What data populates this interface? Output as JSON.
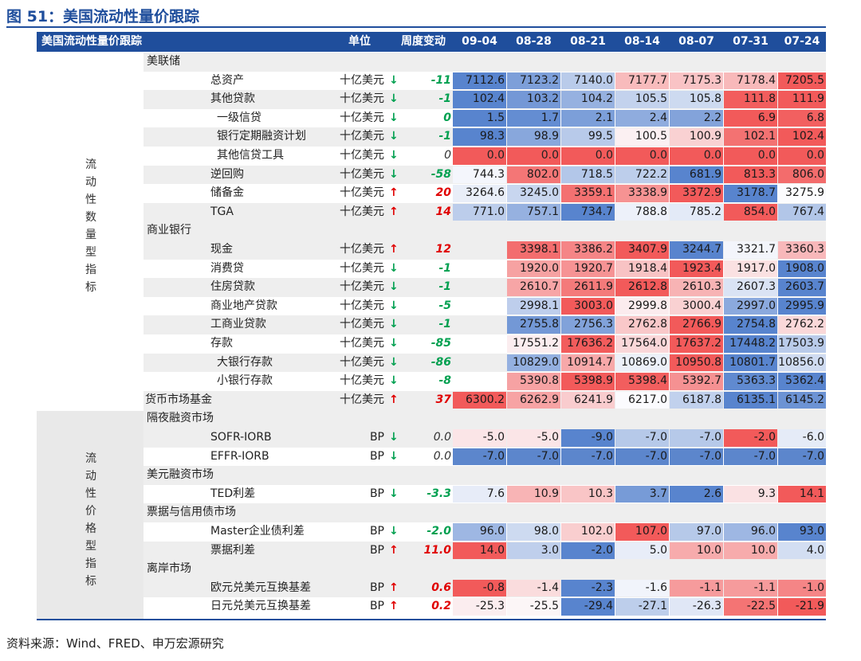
{
  "title": "图 51：美国流动性量价跟踪",
  "header": {
    "name": "美国流动性量价跟踪",
    "unit": "单位",
    "weekly_change": "周度变动",
    "dates": [
      "09-04",
      "08-28",
      "08-21",
      "08-14",
      "08-07",
      "07-31",
      "07-24"
    ]
  },
  "left_labels": {
    "quantity": [
      "流",
      "动",
      "性",
      "数",
      "量",
      "型",
      "指",
      "标"
    ],
    "price": [
      "流",
      "动",
      "性",
      "价",
      "格",
      "型",
      "指",
      "标"
    ]
  },
  "source": "资料来源：Wind、FRED、申万宏源研究",
  "colors": {
    "accent": "#1f4e9c",
    "up": "#e00000",
    "down": "#00a050"
  },
  "rows": [
    {
      "type": "section",
      "label": "美联储"
    },
    {
      "label": "总资产",
      "indent": 1,
      "unit": "十亿美元",
      "dir": "down",
      "change": "-11",
      "values": [
        "7112.6",
        "7123.2",
        "7140.0",
        "7177.7",
        "7175.3",
        "7178.4",
        "7205.5"
      ]
    },
    {
      "label": "其他贷款",
      "indent": 1,
      "unit": "十亿美元",
      "dir": "down",
      "change": "-1",
      "values": [
        "102.4",
        "103.2",
        "104.2",
        "105.5",
        "105.8",
        "111.8",
        "111.9"
      ]
    },
    {
      "label": "一级信贷",
      "indent": 2,
      "unit": "十亿美元",
      "dir": "down",
      "change": "0",
      "values": [
        "1.5",
        "1.7",
        "2.1",
        "2.4",
        "2.2",
        "6.9",
        "6.8"
      ]
    },
    {
      "label": "银行定期融资计划",
      "indent": 2,
      "unit": "十亿美元",
      "dir": "down",
      "change": "-1",
      "values": [
        "98.3",
        "98.9",
        "99.5",
        "100.5",
        "100.9",
        "102.1",
        "102.4"
      ]
    },
    {
      "label": "其他信贷工具",
      "indent": 2,
      "unit": "十亿美元",
      "dir": "down",
      "change": "0",
      "neutral": true,
      "values": [
        "0.0",
        "0.0",
        "0.0",
        "0.0",
        "0.0",
        "0.0",
        "0.0"
      ]
    },
    {
      "label": "逆回购",
      "indent": 1,
      "unit": "十亿美元",
      "dir": "down",
      "change": "-58",
      "values": [
        "744.3",
        "802.0",
        "718.5",
        "722.2",
        "681.9",
        "813.3",
        "806.0"
      ]
    },
    {
      "label": "储备金",
      "indent": 1,
      "unit": "十亿美元",
      "dir": "up",
      "change": "20",
      "values": [
        "3264.6",
        "3245.0",
        "3359.1",
        "3338.9",
        "3372.9",
        "3178.7",
        "3275.9"
      ]
    },
    {
      "label": "TGA",
      "indent": 1,
      "unit": "十亿美元",
      "dir": "up",
      "change": "14",
      "values": [
        "771.0",
        "757.1",
        "734.7",
        "788.8",
        "785.2",
        "854.0",
        "767.4"
      ]
    },
    {
      "type": "section",
      "label": "商业银行"
    },
    {
      "label": "现金",
      "indent": 1,
      "unit": "十亿美元",
      "dir": "up",
      "change": "12",
      "values": [
        "",
        "3398.1",
        "3386.2",
        "3407.9",
        "3244.7",
        "3321.7",
        "3360.3"
      ]
    },
    {
      "label": "消费贷",
      "indent": 1,
      "unit": "十亿美元",
      "dir": "down",
      "change": "-1",
      "values": [
        "",
        "1920.0",
        "1920.7",
        "1918.4",
        "1923.4",
        "1917.0",
        "1908.0"
      ]
    },
    {
      "label": "住房贷款",
      "indent": 1,
      "unit": "十亿美元",
      "dir": "down",
      "change": "-1",
      "values": [
        "",
        "2610.7",
        "2611.9",
        "2612.8",
        "2610.3",
        "2607.3",
        "2603.7"
      ]
    },
    {
      "label": "商业地产贷款",
      "indent": 1,
      "unit": "十亿美元",
      "dir": "down",
      "change": "-5",
      "values": [
        "",
        "2998.1",
        "3003.0",
        "2999.8",
        "3000.4",
        "2997.0",
        "2995.9"
      ]
    },
    {
      "label": "工商业贷款",
      "indent": 1,
      "unit": "十亿美元",
      "dir": "down",
      "change": "-1",
      "values": [
        "",
        "2755.8",
        "2756.3",
        "2762.8",
        "2766.9",
        "2754.8",
        "2762.2"
      ]
    },
    {
      "label": "存款",
      "indent": 1,
      "unit": "十亿美元",
      "dir": "down",
      "change": "-85",
      "values": [
        "",
        "17551.2",
        "17636.2",
        "17564.0",
        "17637.2",
        "17448.2",
        "17503.9"
      ]
    },
    {
      "label": "大银行存款",
      "indent": 2,
      "unit": "十亿美元",
      "dir": "down",
      "change": "-86",
      "values": [
        "",
        "10829.0",
        "10914.7",
        "10869.0",
        "10950.8",
        "10801.7",
        "10856.0"
      ]
    },
    {
      "label": "小银行存款",
      "indent": 2,
      "unit": "十亿美元",
      "dir": "down",
      "change": "-8",
      "values": [
        "",
        "5390.8",
        "5398.9",
        "5398.4",
        "5392.7",
        "5363.3",
        "5362.4"
      ]
    },
    {
      "label": "货币市场基金",
      "indent": 0,
      "unit": "十亿美元",
      "dir": "up",
      "change": "37",
      "values": [
        "6300.2",
        "6262.9",
        "6241.9",
        "6217.0",
        "6187.8",
        "6135.1",
        "6145.2"
      ]
    },
    {
      "type": "section",
      "label": "隔夜融资市场"
    },
    {
      "label": "SOFR-IORB",
      "indent": 1,
      "unit": "BP",
      "dir": "down",
      "change": "0.0",
      "neutral": true,
      "values": [
        "-5.0",
        "-5.0",
        "-9.0",
        "-7.0",
        "-7.0",
        "-2.0",
        "-6.0"
      ]
    },
    {
      "label": "EFFR-IORB",
      "indent": 1,
      "unit": "BP",
      "dir": "down",
      "change": "0.0",
      "neutral": true,
      "values": [
        "-7.0",
        "-7.0",
        "-7.0",
        "-7.0",
        "-7.0",
        "-7.0",
        "-7.0"
      ]
    },
    {
      "type": "section",
      "label": "美元融资市场"
    },
    {
      "label": "TED利差",
      "indent": 1,
      "unit": "BP",
      "dir": "down",
      "change": "-3.3",
      "values": [
        "7.6",
        "10.9",
        "10.3",
        "3.7",
        "2.6",
        "9.3",
        "14.1"
      ]
    },
    {
      "type": "section",
      "label": "票据与信用债市场"
    },
    {
      "label": "Master企业债利差",
      "indent": 1,
      "unit": "BP",
      "dir": "down",
      "change": "-2.0",
      "values": [
        "96.0",
        "98.0",
        "102.0",
        "107.0",
        "97.0",
        "96.0",
        "93.0"
      ]
    },
    {
      "label": "票据利差",
      "indent": 1,
      "unit": "BP",
      "dir": "up",
      "change": "11.0",
      "values": [
        "14.0",
        "3.0",
        "-2.0",
        "5.0",
        "10.0",
        "10.0",
        "4.0"
      ]
    },
    {
      "type": "section",
      "label": "离岸市场"
    },
    {
      "label": "欧元兑美元互换基差",
      "indent": 1,
      "unit": "BP",
      "dir": "up",
      "change": "0.6",
      "values": [
        "-0.8",
        "-1.4",
        "-2.3",
        "-1.6",
        "-1.1",
        "-1.1",
        "-1.0"
      ]
    },
    {
      "label": "日元兑美元互换基差",
      "indent": 1,
      "unit": "BP",
      "dir": "up",
      "change": "0.2",
      "values": [
        "-25.3",
        "-25.5",
        "-29.4",
        "-27.1",
        "-26.3",
        "-22.5",
        "-21.9"
      ]
    }
  ]
}
